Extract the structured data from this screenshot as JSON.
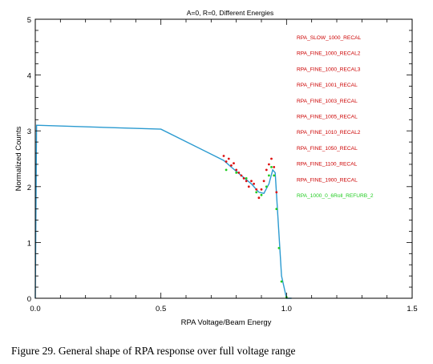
{
  "caption": "Figure 29. General shape of RPA response over full voltage range",
  "chart_data": {
    "type": "scatter",
    "title": "A=0, R=0, Different Energies",
    "xlabel": "RPA Voltage/Beam Energy",
    "ylabel": "Normalized Counts",
    "xlim": [
      0.0,
      1.5
    ],
    "ylim": [
      0,
      5
    ],
    "xticks": [
      "0.0",
      "0.5",
      "1.0",
      "1.5"
    ],
    "yticks": [
      "0",
      "1",
      "2",
      "3",
      "4",
      "5"
    ],
    "grid": false,
    "legend_position": "top-right",
    "legend": [
      {
        "label": "RPA_SLOW_1000_RECAL",
        "color": "#cc0000"
      },
      {
        "label": "RPA_FINE_1000_RECAL2",
        "color": "#cc0000"
      },
      {
        "label": "RPA_FINE_1000_RECAL3",
        "color": "#cc0000"
      },
      {
        "label": "RPA_FINE_1001_RECAL",
        "color": "#cc0000"
      },
      {
        "label": "RPA_FINE_1003_RECAL",
        "color": "#cc0000"
      },
      {
        "label": "RPA_FINE_1005_RECAL",
        "color": "#cc0000"
      },
      {
        "label": "RPA_FINE_1010_RECAL2",
        "color": "#cc0000"
      },
      {
        "label": "RPA_FINE_1050_RECAL",
        "color": "#cc0000"
      },
      {
        "label": "RPA_FINE_1100_RECAL",
        "color": "#cc0000"
      },
      {
        "label": "RPA_FINE_1900_RECAL",
        "color": "#cc0000"
      },
      {
        "label": "RPA_1000_0_6Roll_REFURB_2",
        "color": "#22cc22"
      }
    ],
    "series": [
      {
        "color": "#2a9ad0",
        "style": "line",
        "x": [
          0.0,
          0.005,
          0.5,
          0.75,
          0.78,
          0.82,
          0.86,
          0.89,
          0.91,
          0.93,
          0.945,
          0.955,
          0.965,
          0.98,
          1.0,
          1.02
        ],
        "y": [
          0.0,
          3.1,
          3.03,
          2.47,
          2.35,
          2.2,
          2.05,
          1.9,
          1.88,
          2.05,
          2.3,
          2.25,
          1.5,
          0.4,
          0.0,
          0.0
        ]
      },
      {
        "color": "#dd1111",
        "style": "points",
        "x": [
          0.75,
          0.76,
          0.77,
          0.78,
          0.79,
          0.8,
          0.81,
          0.82,
          0.83,
          0.84,
          0.85,
          0.86,
          0.87,
          0.88,
          0.89,
          0.9,
          0.91,
          0.92,
          0.93,
          0.94,
          0.95,
          0.96
        ],
        "y": [
          2.55,
          2.45,
          2.5,
          2.38,
          2.42,
          2.3,
          2.25,
          2.2,
          2.15,
          2.1,
          2.0,
          2.1,
          2.05,
          1.95,
          1.8,
          1.95,
          2.1,
          2.3,
          2.4,
          2.5,
          2.35,
          1.9
        ]
      },
      {
        "color": "#22cc22",
        "style": "points",
        "x": [
          0.76,
          0.8,
          0.84,
          0.88,
          0.9,
          0.92,
          0.93,
          0.94,
          0.95,
          0.96,
          0.97,
          0.98,
          1.0
        ],
        "y": [
          2.3,
          2.25,
          2.15,
          1.9,
          1.85,
          2.0,
          2.2,
          2.35,
          2.2,
          1.6,
          0.9,
          0.3,
          0.02
        ]
      }
    ]
  }
}
